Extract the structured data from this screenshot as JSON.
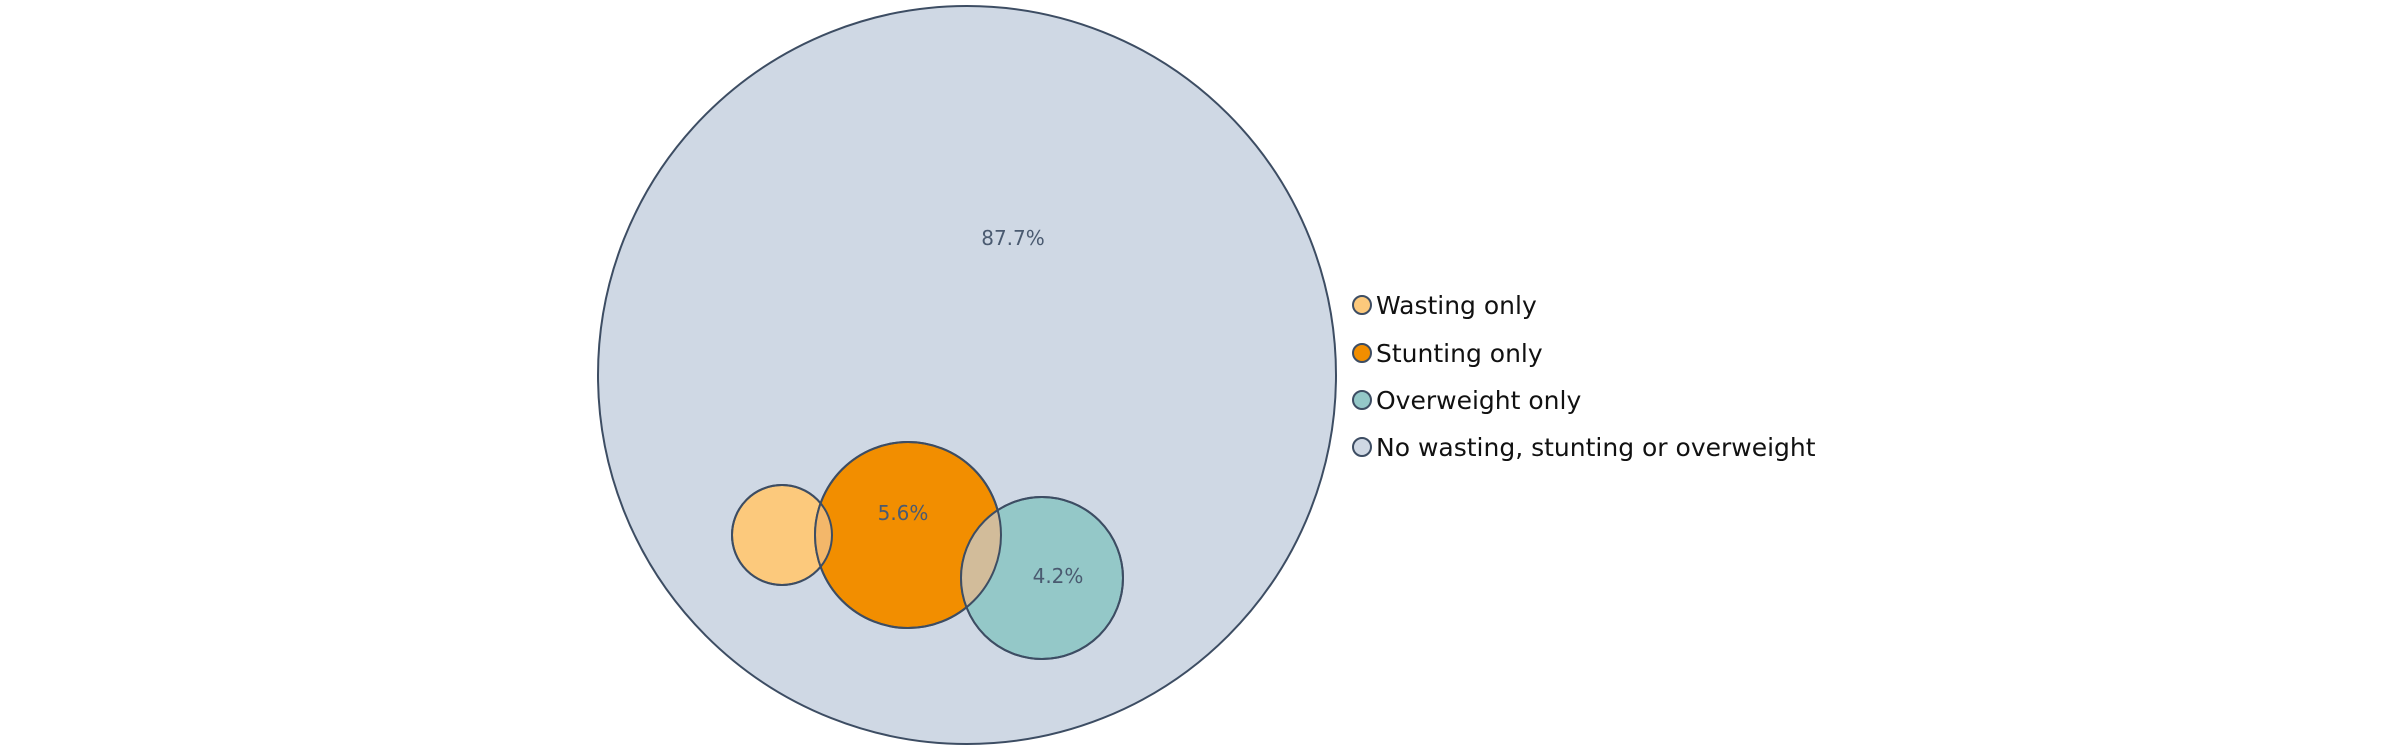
{
  "chart_data": {
    "type": "venn",
    "title": "",
    "series": [
      {
        "name": "Wasting only",
        "color": "#fcc97c"
      },
      {
        "name": "Stunting only",
        "color": "#f28e00"
      },
      {
        "name": "Overweight only",
        "color": "#94c8c8"
      },
      {
        "name": "No wasting, stunting or overweight",
        "color": "#cfd8e4"
      }
    ],
    "data_labels": [
      {
        "series": "Stunting only",
        "value": 5.6,
        "text": "5.6%"
      },
      {
        "series": "Overweight only",
        "value": 4.2,
        "text": "4.2%"
      },
      {
        "series": "No wasting, stunting or overweight",
        "value": 87.7,
        "text": "87.7%"
      }
    ],
    "overlap_colors": {
      "wasting_stunting": "#f3b76a",
      "stunting_overweight": "#d2bc9a"
    },
    "outline_color": "#3d4d63",
    "legend_placement": "right"
  }
}
